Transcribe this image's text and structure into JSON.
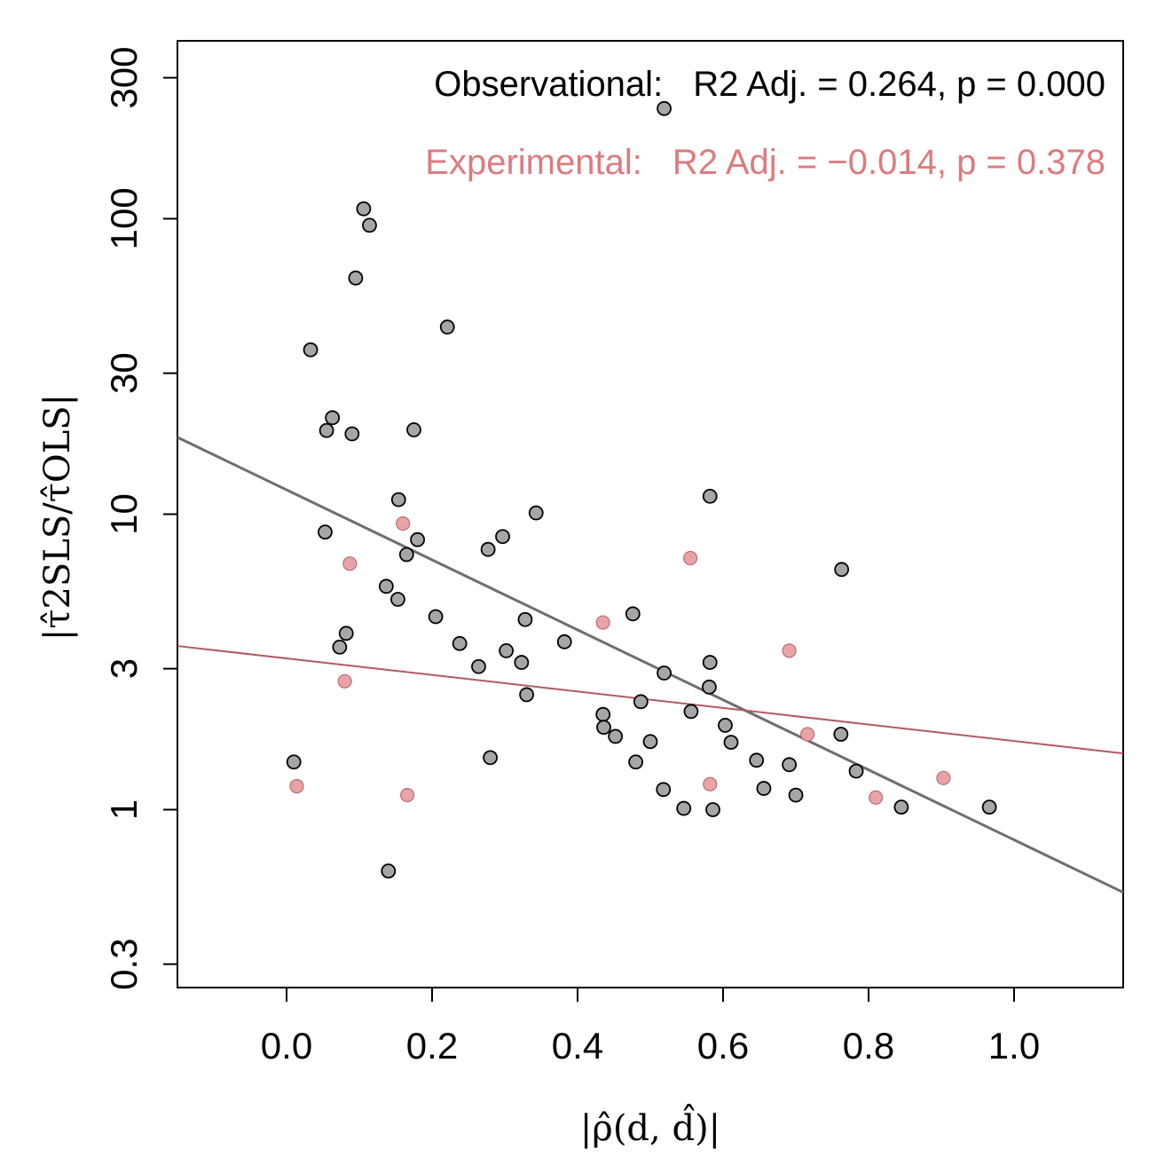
{
  "chart_data": {
    "type": "scatter",
    "xlim": [
      -0.15,
      1.15
    ],
    "ylim": [
      0.25,
      400
    ],
    "yscale": "log",
    "x_ticks": [
      0.0,
      0.2,
      0.4,
      0.6,
      0.8,
      1.0
    ],
    "x_tick_labels": [
      "0.0",
      "0.2",
      "0.4",
      "0.6",
      "0.8",
      "1.0"
    ],
    "y_ticks": [
      0.3,
      1,
      3,
      10,
      30,
      100,
      300
    ],
    "y_tick_labels": [
      "0.3",
      "1",
      "3",
      "10",
      "30",
      "100",
      "300"
    ],
    "xlabel": "|ρ̂(d, d̂)|",
    "ylabel": "|τ̂2SLS/τ̂OLS|",
    "grid": false,
    "colors": {
      "observational_fill": "#a6a6a6",
      "observational_line": "#6e6e6e",
      "experimental_fill": "#e9a3a6",
      "experimental_stroke": "#b96f74",
      "experimental_line": "#b25a62",
      "experimental_text": "#dd7b7e"
    },
    "series": [
      {
        "name": "Observational",
        "annotation_label": "Observational:",
        "annotation_stats": "R2 Adj. = 0.264, p = 0.000",
        "fit_line": {
          "x": [
            -0.15,
            1.15
          ],
          "y": [
            18.2,
            0.525
          ]
        },
        "points": [
          [
            0.01,
            1.45
          ],
          [
            0.033,
            36
          ],
          [
            0.053,
            8.7
          ],
          [
            0.055,
            19.2
          ],
          [
            0.063,
            21.2
          ],
          [
            0.073,
            3.55
          ],
          [
            0.082,
            3.95
          ],
          [
            0.09,
            18.7
          ],
          [
            0.095,
            63
          ],
          [
            0.106,
            108
          ],
          [
            0.114,
            95
          ],
          [
            0.137,
            5.7
          ],
          [
            0.14,
            0.62
          ],
          [
            0.153,
            5.15
          ],
          [
            0.154,
            11.2
          ],
          [
            0.165,
            7.3
          ],
          [
            0.175,
            19.3
          ],
          [
            0.18,
            8.2
          ],
          [
            0.205,
            4.5
          ],
          [
            0.221,
            43
          ],
          [
            0.238,
            3.65
          ],
          [
            0.264,
            3.05
          ],
          [
            0.277,
            7.6
          ],
          [
            0.28,
            1.5
          ],
          [
            0.297,
            8.4
          ],
          [
            0.302,
            3.45
          ],
          [
            0.323,
            3.15
          ],
          [
            0.328,
            4.4
          ],
          [
            0.33,
            2.45
          ],
          [
            0.343,
            10.1
          ],
          [
            0.382,
            3.7
          ],
          [
            0.435,
            2.1
          ],
          [
            0.436,
            1.9
          ],
          [
            0.452,
            1.77
          ],
          [
            0.476,
            4.6
          ],
          [
            0.48,
            1.45
          ],
          [
            0.487,
            2.32
          ],
          [
            0.5,
            1.7
          ],
          [
            0.518,
            1.17
          ],
          [
            0.519,
            2.9
          ],
          [
            0.519,
            236
          ],
          [
            0.546,
            1.01
          ],
          [
            0.556,
            2.15
          ],
          [
            0.581,
            2.6
          ],
          [
            0.582,
            3.15
          ],
          [
            0.582,
            11.5
          ],
          [
            0.586,
            1.0
          ],
          [
            0.603,
            1.93
          ],
          [
            0.611,
            1.69
          ],
          [
            0.646,
            1.47
          ],
          [
            0.656,
            1.18
          ],
          [
            0.691,
            1.42
          ],
          [
            0.7,
            1.12
          ],
          [
            0.762,
            1.8
          ],
          [
            0.763,
            6.5
          ],
          [
            0.783,
            1.35
          ],
          [
            0.845,
            1.02
          ],
          [
            0.966,
            1.02
          ]
        ]
      },
      {
        "name": "Experimental",
        "annotation_label": "Experimental:",
        "annotation_stats": "R2 Adj. = −0.014, p = 0.378",
        "fit_line": {
          "x": [
            -0.15,
            1.15
          ],
          "y": [
            3.58,
            1.55
          ]
        },
        "points": [
          [
            0.014,
            1.2
          ],
          [
            0.08,
            2.72
          ],
          [
            0.087,
            6.8
          ],
          [
            0.16,
            9.3
          ],
          [
            0.166,
            1.12
          ],
          [
            0.435,
            4.3
          ],
          [
            0.555,
            7.1
          ],
          [
            0.582,
            1.22
          ],
          [
            0.691,
            3.45
          ],
          [
            0.716,
            1.8
          ],
          [
            0.81,
            1.1
          ],
          [
            0.903,
            1.28
          ]
        ]
      }
    ]
  }
}
